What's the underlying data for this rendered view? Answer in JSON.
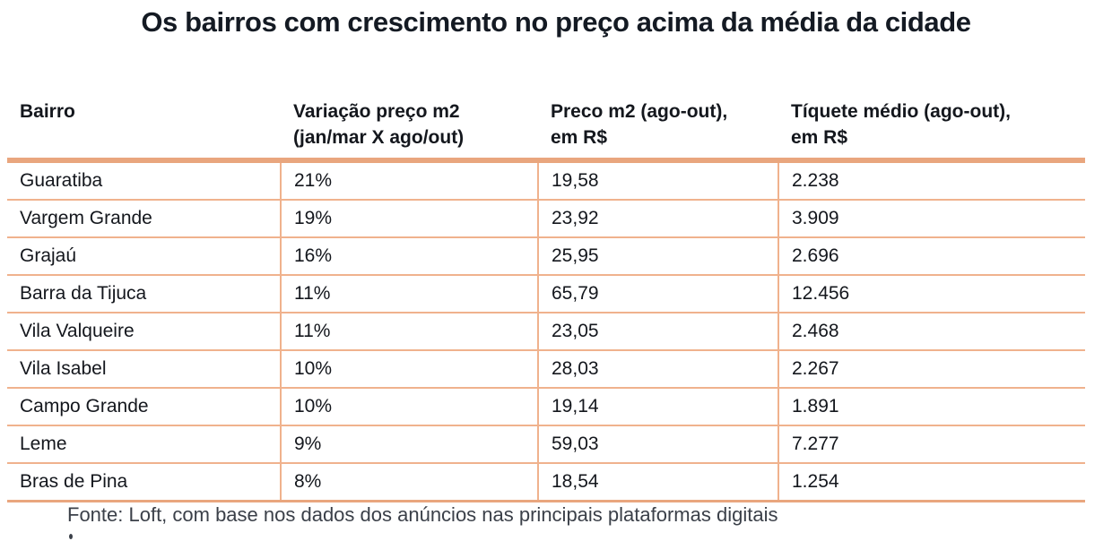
{
  "title": "Os bairros com crescimento no preço acima da média da cidade",
  "table": {
    "header_lines": [
      {
        "line1": "Bairro",
        "line2": ""
      },
      {
        "line1": "Variação preço m2",
        "line2": "(jan/mar X ago/out)"
      },
      {
        "line1": "Preco m2 (ago-out),",
        "line2": "em R$"
      },
      {
        "line1": "Tíquete médio (ago-out),",
        "line2": "em R$"
      }
    ]
  },
  "chart_data": {
    "type": "table",
    "title": "Os bairros com crescimento no preço acima da média da cidade",
    "columns": [
      "Bairro",
      "Variação preço m2 (jan/mar X ago/out)",
      "Preco m2 (ago-out), em R$",
      "Tíquete médio (ago-out), em R$"
    ],
    "rows": [
      [
        "Guaratiba",
        "21%",
        "19,58",
        "2.238"
      ],
      [
        "Vargem Grande",
        "19%",
        "23,92",
        "3.909"
      ],
      [
        "Grajaú",
        "16%",
        "25,95",
        "2.696"
      ],
      [
        "Barra da Tijuca",
        "11%",
        "65,79",
        "12.456"
      ],
      [
        "Vila Valqueire",
        "11%",
        "23,05",
        "2.468"
      ],
      [
        "Vila Isabel",
        "10%",
        "28,03",
        "2.267"
      ],
      [
        "Campo Grande",
        "10%",
        "19,14",
        "1.891"
      ],
      [
        "Leme",
        "9%",
        "59,03",
        "7.277"
      ],
      [
        "Bras de Pina",
        "8%",
        "18,54",
        "1.254"
      ]
    ],
    "variation_values_pct": [
      21,
      19,
      16,
      11,
      11,
      10,
      10,
      9,
      8
    ],
    "price_m2_values": [
      19.58,
      23.92,
      25.95,
      65.79,
      23.05,
      28.03,
      19.14,
      59.03,
      18.54
    ],
    "ticket_values": [
      2238,
      3909,
      2696,
      12456,
      2468,
      2267,
      1891,
      7277,
      1254
    ],
    "source": "Fonte: Loft, com base nos dados dos anúncios nas principais plataformas digitais"
  },
  "footer": {
    "source": "Fonte: Loft, com base nos dados dos anúncios nas principais plataformas digitais"
  },
  "colors": {
    "border_thick": "#e9a67e",
    "border_thin": "#f0b28d",
    "title_text": "#141a23",
    "body_text": "#14171d",
    "footer_text": "#3b4049",
    "background": "#ffffff"
  }
}
